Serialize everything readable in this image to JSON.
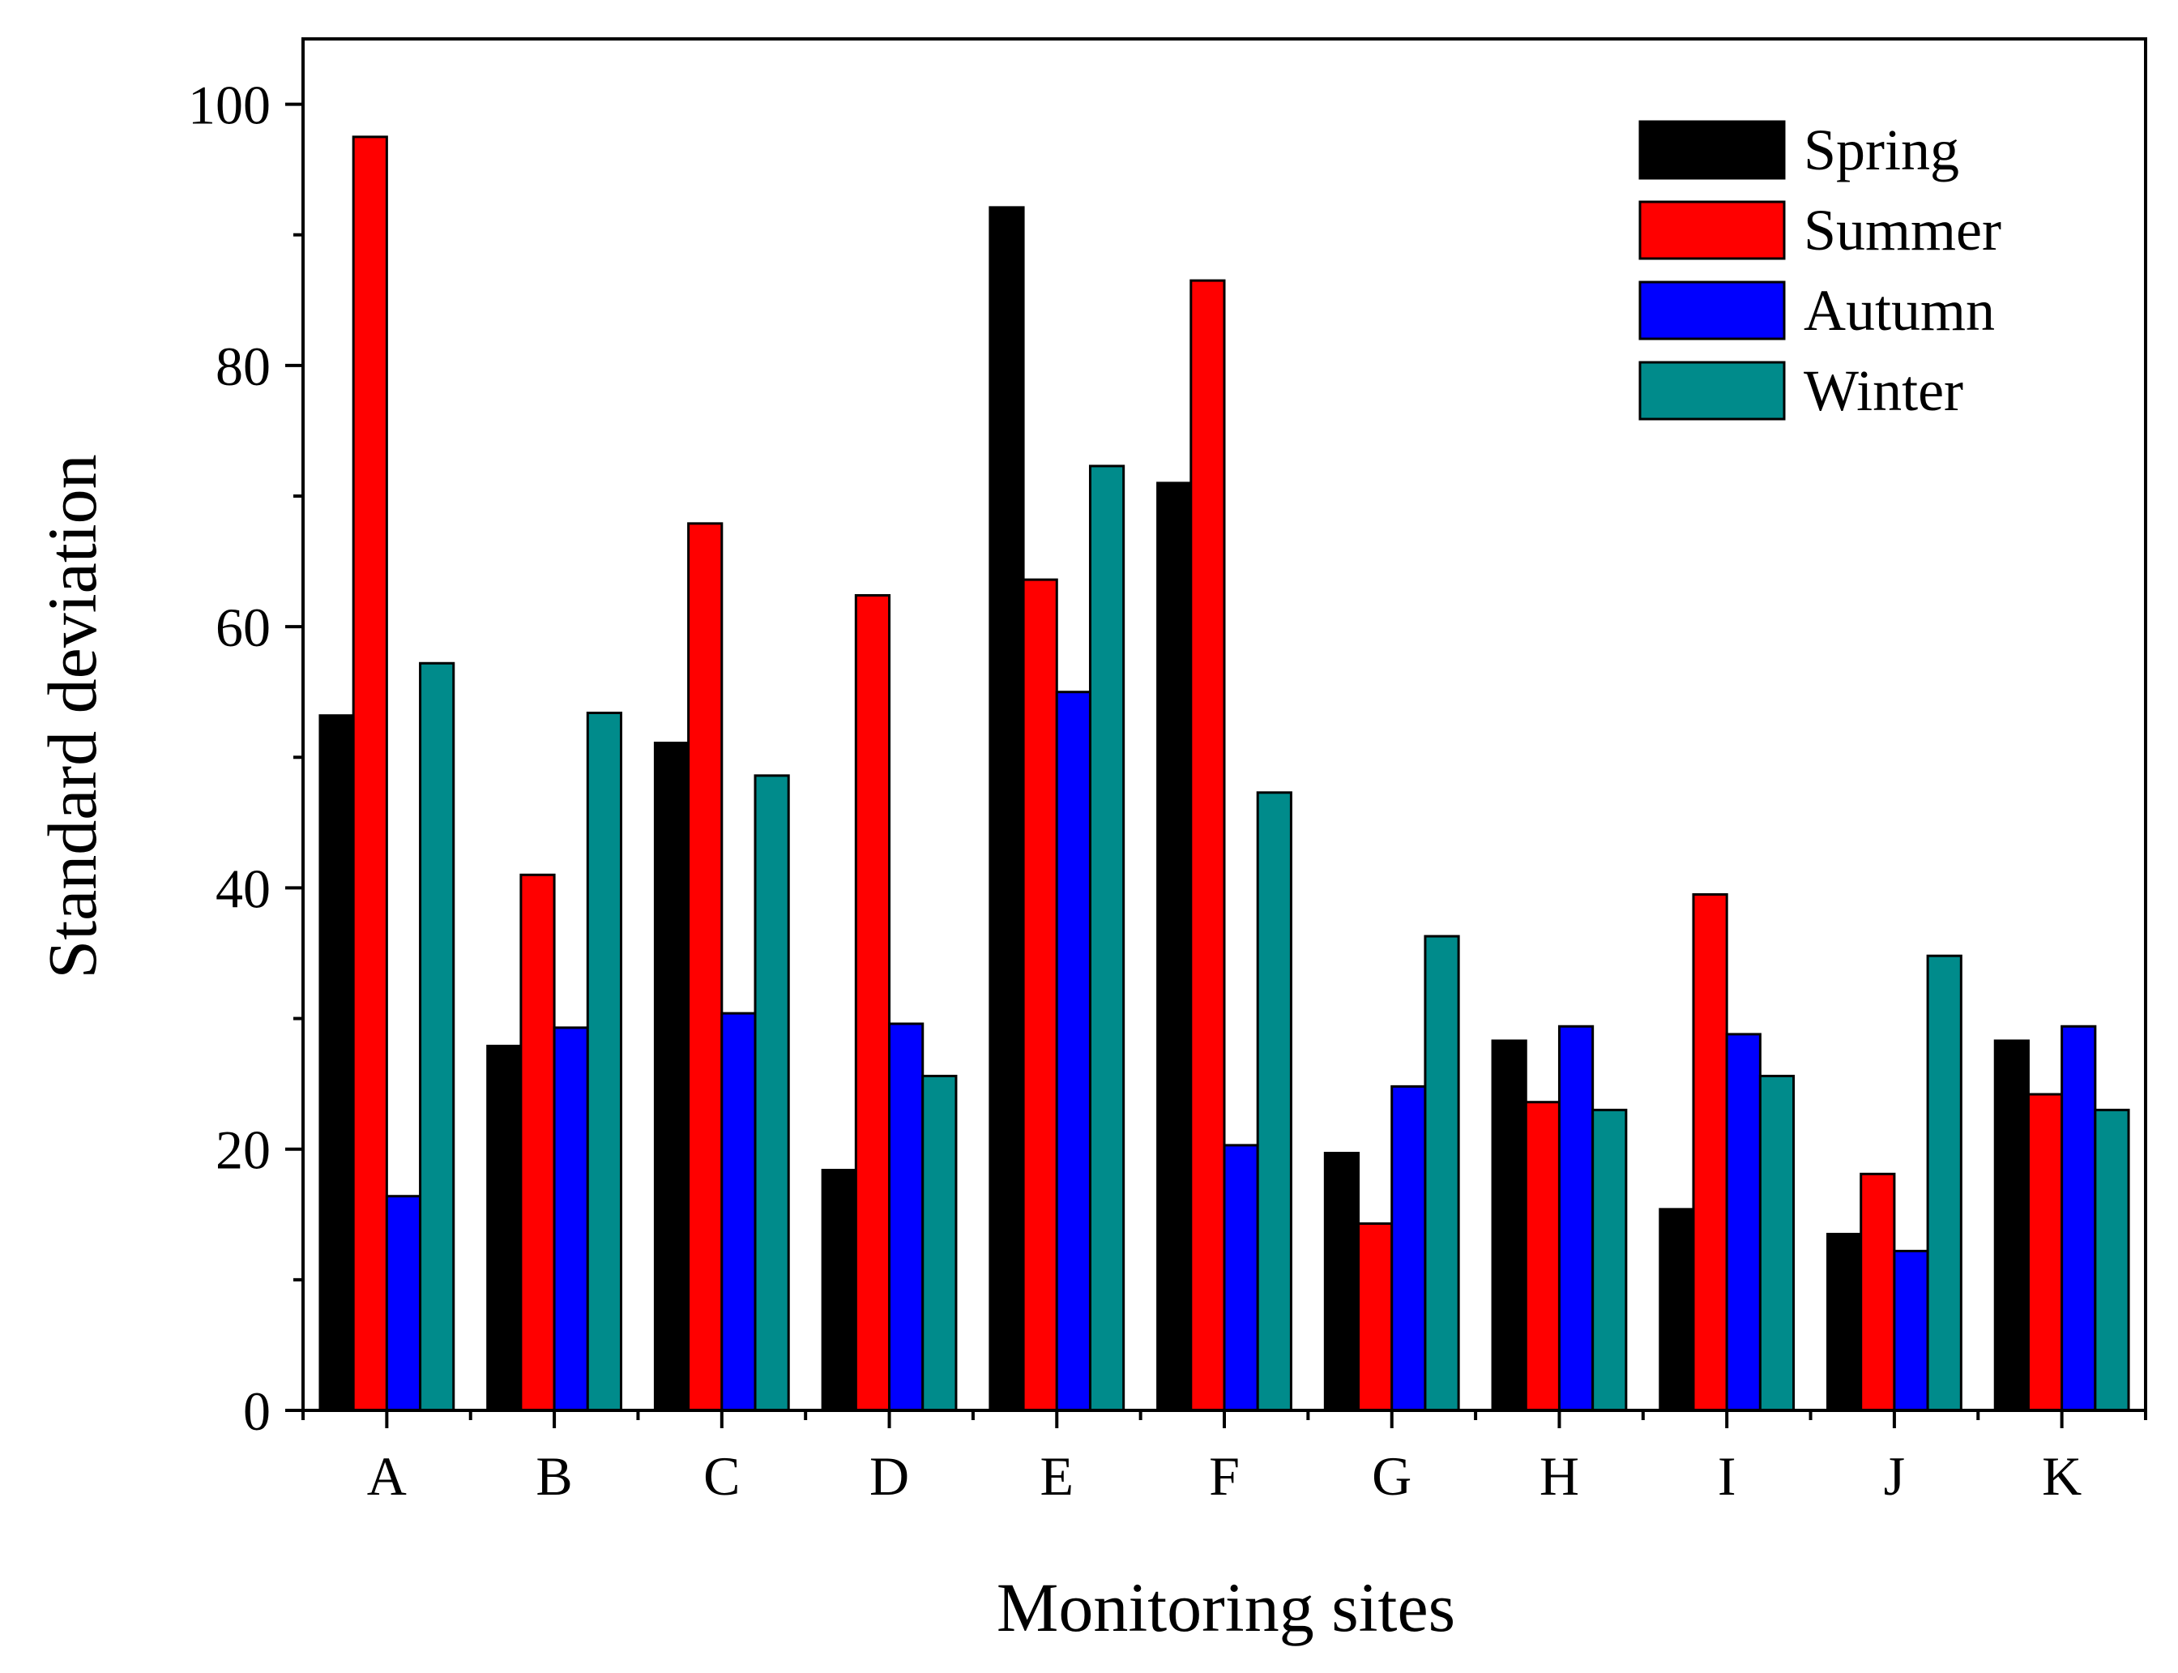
{
  "chart_data": {
    "type": "bar",
    "title": "",
    "xlabel": "Monitoring sites",
    "ylabel": "Standard deviation",
    "ylim": [
      0,
      105
    ],
    "yticks": [
      0,
      20,
      40,
      60,
      80,
      100
    ],
    "grid": false,
    "legend_position": "top-right",
    "categories": [
      "A",
      "B",
      "C",
      "D",
      "E",
      "F",
      "G",
      "H",
      "I",
      "J",
      "K"
    ],
    "series": [
      {
        "name": "Spring",
        "color": "#000000",
        "values": [
          53.2,
          27.9,
          51.1,
          18.4,
          92.1,
          71.0,
          19.7,
          28.3,
          15.4,
          13.5,
          28.3
        ]
      },
      {
        "name": "Summer",
        "color": "#ff0000",
        "values": [
          97.5,
          41.0,
          67.9,
          62.4,
          63.6,
          86.5,
          14.3,
          23.6,
          39.5,
          18.1,
          24.2
        ]
      },
      {
        "name": "Autumn",
        "color": "#0000ff",
        "values": [
          16.4,
          29.3,
          30.4,
          29.6,
          55.0,
          20.3,
          24.8,
          29.4,
          28.8,
          12.2,
          29.4
        ]
      },
      {
        "name": "Winter",
        "color": "#008b8b",
        "values": [
          57.2,
          53.4,
          48.6,
          25.6,
          72.3,
          47.3,
          36.3,
          23.0,
          25.6,
          34.8,
          23.0
        ]
      }
    ]
  }
}
